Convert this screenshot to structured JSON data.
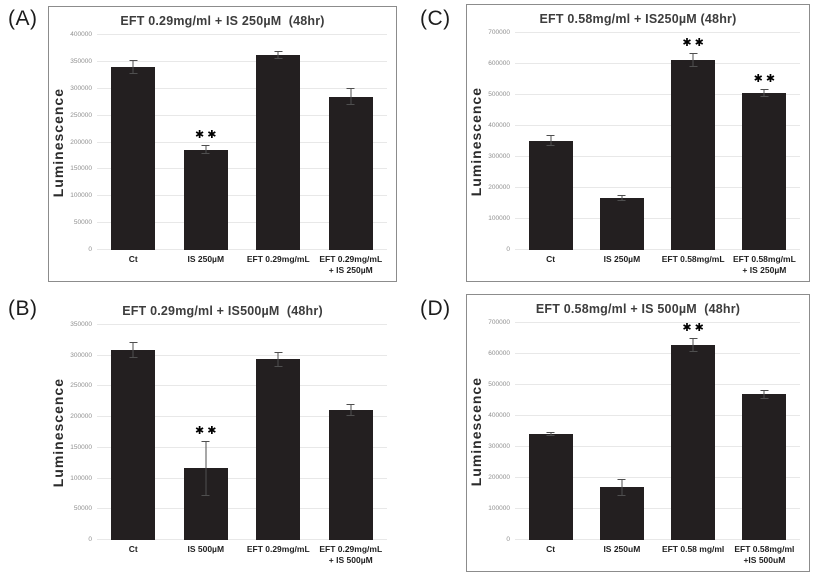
{
  "figure_kind": "four-panel bar chart figure",
  "panels": [
    {
      "label": "(A)"
    },
    {
      "label": "(B)"
    },
    {
      "label": "(C)"
    },
    {
      "label": "(D)"
    }
  ],
  "chart_data": [
    {
      "type": "bar",
      "panel_label": "(A)",
      "title": "EFT 0.29mg/ml + IS 250µM  (48hr)",
      "ylabel": "Luminescence",
      "ylim": [
        0,
        400000
      ],
      "ytick_step": 50000,
      "grid": true,
      "legend": false,
      "categories": [
        "Ct",
        "IS 250µM",
        "EFT 0.29mg/mL",
        "EFT 0.29mg/mL\n+ IS 250µM"
      ],
      "values": [
        340000,
        187000,
        363000,
        285000
      ],
      "errors": [
        13000,
        9000,
        8000,
        16000
      ],
      "significance": [
        "",
        "✱✱",
        "",
        ""
      ]
    },
    {
      "type": "bar",
      "panel_label": "(B)",
      "title": "EFT 0.29mg/ml + IS500µM  (48hr)",
      "ylabel": "Luminescence",
      "ylim": [
        0,
        350000
      ],
      "ytick_step": 50000,
      "grid": true,
      "legend": false,
      "categories": [
        "Ct",
        "IS 500µM",
        "EFT 0.29mg/mL",
        "EFT 0.29mg/mL\n+ IS 500µM"
      ],
      "values": [
        310000,
        117000,
        294000,
        212000
      ],
      "errors": [
        13000,
        45000,
        12000,
        10000
      ],
      "significance": [
        "",
        "✱✱",
        "",
        ""
      ]
    },
    {
      "type": "bar",
      "panel_label": "(C)",
      "title": "EFT 0.58mg/ml + IS250µM (48hr)",
      "ylabel": "Luminescence",
      "ylim": [
        0,
        700000
      ],
      "ytick_step": 100000,
      "grid": true,
      "legend": false,
      "categories": [
        "Ct",
        "IS 250µM",
        "EFT 0.58mg/mL",
        "EFT 0.58mg/mL\n+ IS 250µM"
      ],
      "values": [
        353000,
        168000,
        613000,
        506000
      ],
      "errors": [
        18000,
        9000,
        23000,
        13000
      ],
      "significance": [
        "",
        "",
        "✱✱",
        "✱✱"
      ]
    },
    {
      "type": "bar",
      "panel_label": "(D)",
      "title": "EFT 0.58mg/ml + IS 500µM  (48hr)",
      "ylabel": "Luminescence",
      "ylim": [
        0,
        700000
      ],
      "ytick_step": 100000,
      "grid": true,
      "legend": false,
      "categories": [
        "Ct",
        "IS 250uM",
        "EFT 0.58 mg/ml",
        "EFT 0.58mg/ml\n+IS 500uM"
      ],
      "values": [
        341000,
        170000,
        628000,
        470000
      ],
      "errors": [
        6000,
        28000,
        23000,
        14000
      ],
      "significance": [
        "",
        "",
        "✱✱",
        ""
      ]
    }
  ]
}
